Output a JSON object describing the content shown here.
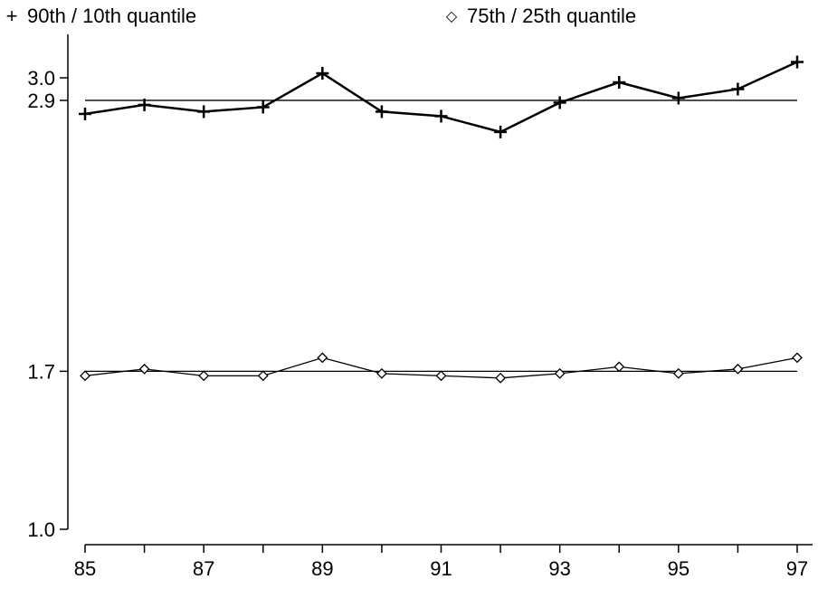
{
  "chart_data": {
    "type": "line",
    "x_ticks": [
      "85",
      "87",
      "89",
      "91",
      "93",
      "95",
      "97"
    ],
    "y_ticks": [
      "1.0",
      "1.7",
      "2.9",
      "3.0"
    ],
    "ylim": [
      1.0,
      3.0
    ],
    "xlim": [
      85,
      97
    ],
    "x": [
      85,
      86,
      87,
      88,
      89,
      90,
      91,
      92,
      93,
      94,
      95,
      96,
      97
    ],
    "series": [
      {
        "name": "90th / 10th quantile",
        "marker": "plus",
        "values": [
          2.84,
          2.88,
          2.85,
          2.87,
          3.02,
          2.85,
          2.83,
          2.76,
          2.89,
          2.98,
          2.91,
          2.95,
          3.07
        ]
      },
      {
        "name": "75th / 25th quantile",
        "marker": "diamond",
        "values": [
          1.68,
          1.71,
          1.68,
          1.68,
          1.76,
          1.69,
          1.68,
          1.67,
          1.69,
          1.72,
          1.69,
          1.71,
          1.76
        ]
      }
    ],
    "reference_lines": [
      2.9,
      1.7
    ],
    "grid": false
  },
  "legend": {
    "item1": {
      "symbol": "+",
      "label": "90th / 10th quantile"
    },
    "item2": {
      "symbol": "◇",
      "label": "75th / 25th quantile"
    }
  }
}
